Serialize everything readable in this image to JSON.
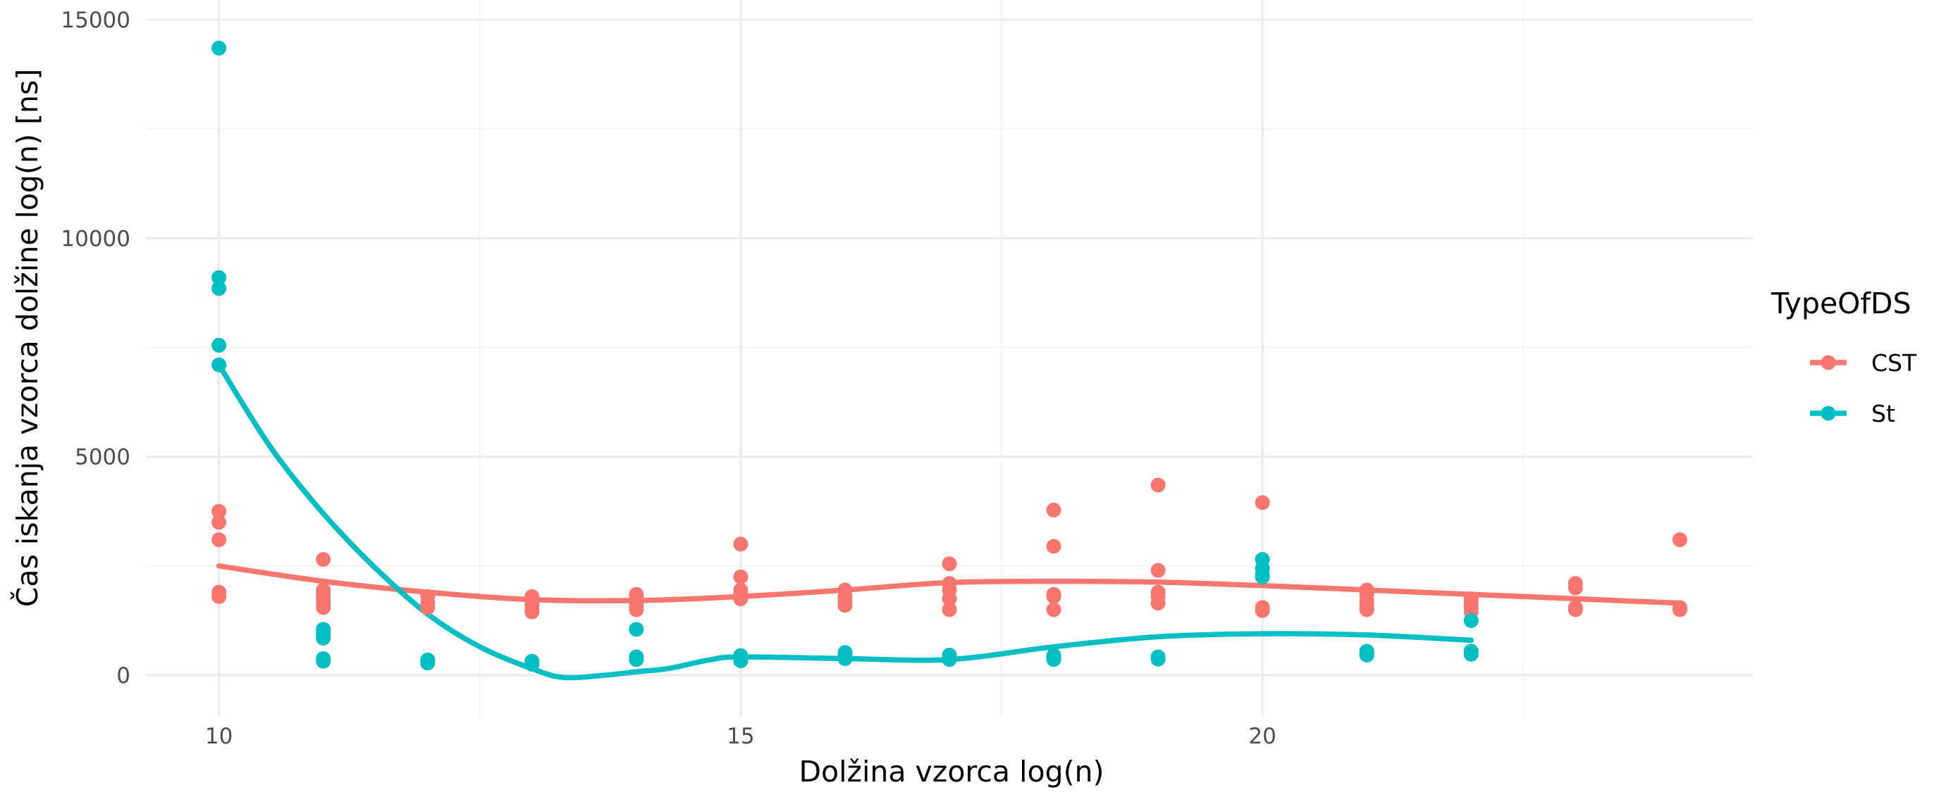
{
  "chart_data": {
    "type": "scatter",
    "title": "",
    "xlabel": "Dolžina vzorca log(n)",
    "ylabel": "Čas iskanja vzorca dolžine log(n) [ns]",
    "xlim": [
      9.3,
      24.7
    ],
    "ylim": [
      -950,
      15450
    ],
    "x_major_ticks": [
      10,
      15,
      20
    ],
    "x_minor_ticks": [
      12.5,
      17.5,
      22.5
    ],
    "y_major_ticks": [
      0,
      5000,
      10000,
      15000
    ],
    "y_minor_ticks": [
      2500,
      7500,
      12500
    ],
    "x_tick_labels": [
      "10",
      "15",
      "20"
    ],
    "y_tick_labels": [
      "0",
      "5000",
      "10000",
      "15000"
    ],
    "grid": true,
    "legend": {
      "title": "TypeOfDS",
      "position": "right"
    },
    "colors": {
      "CST": "#f8766d",
      "St": "#00bfc4",
      "grid_major": "#ebebeb",
      "grid_minor": "#f2f2f2",
      "tick_text": "#4d4d4d"
    },
    "series": [
      {
        "name": "CST",
        "color": "#f8766d",
        "points": [
          [
            10,
            3750
          ],
          [
            10,
            3500
          ],
          [
            10,
            3100
          ],
          [
            10,
            1900
          ],
          [
            10,
            1800
          ],
          [
            11,
            2650
          ],
          [
            11,
            1950
          ],
          [
            11,
            1850
          ],
          [
            11,
            1750
          ],
          [
            11,
            1650
          ],
          [
            11,
            1550
          ],
          [
            12,
            1800
          ],
          [
            12,
            1650
          ],
          [
            12,
            1550
          ],
          [
            13,
            1800
          ],
          [
            13,
            1700
          ],
          [
            13,
            1600
          ],
          [
            13,
            1500
          ],
          [
            13,
            1450
          ],
          [
            14,
            1850
          ],
          [
            14,
            1750
          ],
          [
            14,
            1650
          ],
          [
            14,
            1550
          ],
          [
            14,
            1500
          ],
          [
            15,
            3000
          ],
          [
            15,
            2250
          ],
          [
            15,
            1950
          ],
          [
            15,
            1850
          ],
          [
            15,
            1750
          ],
          [
            16,
            1950
          ],
          [
            16,
            1800
          ],
          [
            16,
            1700
          ],
          [
            16,
            1600
          ],
          [
            17,
            2550
          ],
          [
            17,
            2100
          ],
          [
            17,
            1950
          ],
          [
            17,
            1750
          ],
          [
            17,
            1500
          ],
          [
            18,
            3780
          ],
          [
            18,
            2950
          ],
          [
            18,
            1850
          ],
          [
            18,
            1800
          ],
          [
            18,
            1500
          ],
          [
            19,
            4350
          ],
          [
            19,
            2400
          ],
          [
            19,
            1900
          ],
          [
            19,
            1800
          ],
          [
            19,
            1650
          ],
          [
            20,
            3950
          ],
          [
            20,
            1550
          ],
          [
            20,
            1480
          ],
          [
            21,
            1950
          ],
          [
            21,
            1850
          ],
          [
            21,
            1700
          ],
          [
            21,
            1600
          ],
          [
            21,
            1500
          ],
          [
            22,
            1750
          ],
          [
            22,
            1650
          ],
          [
            22,
            1550
          ],
          [
            22,
            1450
          ],
          [
            23,
            2100
          ],
          [
            23,
            2000
          ],
          [
            23,
            1550
          ],
          [
            23,
            1500
          ],
          [
            24,
            3100
          ],
          [
            24,
            1550
          ],
          [
            24,
            1500
          ]
        ],
        "trend": [
          [
            10,
            2500
          ],
          [
            11,
            2150
          ],
          [
            12,
            1900
          ],
          [
            13,
            1730
          ],
          [
            14,
            1710
          ],
          [
            15,
            1800
          ],
          [
            16,
            1950
          ],
          [
            17,
            2120
          ],
          [
            18,
            2150
          ],
          [
            19,
            2130
          ],
          [
            20,
            2050
          ],
          [
            21,
            1950
          ],
          [
            22,
            1850
          ],
          [
            23,
            1750
          ],
          [
            24,
            1650
          ]
        ]
      },
      {
        "name": "St",
        "color": "#00bfc4",
        "points": [
          [
            10,
            14350
          ],
          [
            10,
            9100
          ],
          [
            10,
            8850
          ],
          [
            10,
            7550
          ],
          [
            10,
            7100
          ],
          [
            11,
            1050
          ],
          [
            11,
            950
          ],
          [
            11,
            850
          ],
          [
            11,
            380
          ],
          [
            11,
            320
          ],
          [
            12,
            350
          ],
          [
            12,
            280
          ],
          [
            13,
            320
          ],
          [
            13,
            250
          ],
          [
            14,
            1050
          ],
          [
            14,
            420
          ],
          [
            14,
            360
          ],
          [
            15,
            450
          ],
          [
            15,
            380
          ],
          [
            15,
            330
          ],
          [
            16,
            520
          ],
          [
            16,
            440
          ],
          [
            16,
            380
          ],
          [
            17,
            460
          ],
          [
            17,
            400
          ],
          [
            17,
            360
          ],
          [
            18,
            450
          ],
          [
            18,
            400
          ],
          [
            18,
            360
          ],
          [
            19,
            420
          ],
          [
            19,
            370
          ],
          [
            20,
            2650
          ],
          [
            20,
            2450
          ],
          [
            20,
            2300
          ],
          [
            20,
            2250
          ],
          [
            21,
            550
          ],
          [
            21,
            500
          ],
          [
            21,
            460
          ],
          [
            22,
            1250
          ],
          [
            22,
            550
          ],
          [
            22,
            480
          ]
        ],
        "trend": [
          [
            10,
            7100
          ],
          [
            10.5,
            5200
          ],
          [
            11,
            3700
          ],
          [
            11.5,
            2450
          ],
          [
            12,
            1400
          ],
          [
            12.5,
            650
          ],
          [
            13,
            150
          ],
          [
            13.3,
            -50
          ],
          [
            13.7,
            0
          ],
          [
            14,
            80
          ],
          [
            14.3,
            150
          ],
          [
            14.7,
            350
          ],
          [
            15,
            420
          ],
          [
            16,
            380
          ],
          [
            17,
            360
          ],
          [
            18,
            650
          ],
          [
            19,
            880
          ],
          [
            20,
            950
          ],
          [
            21,
            920
          ],
          [
            22,
            800
          ]
        ]
      }
    ]
  }
}
